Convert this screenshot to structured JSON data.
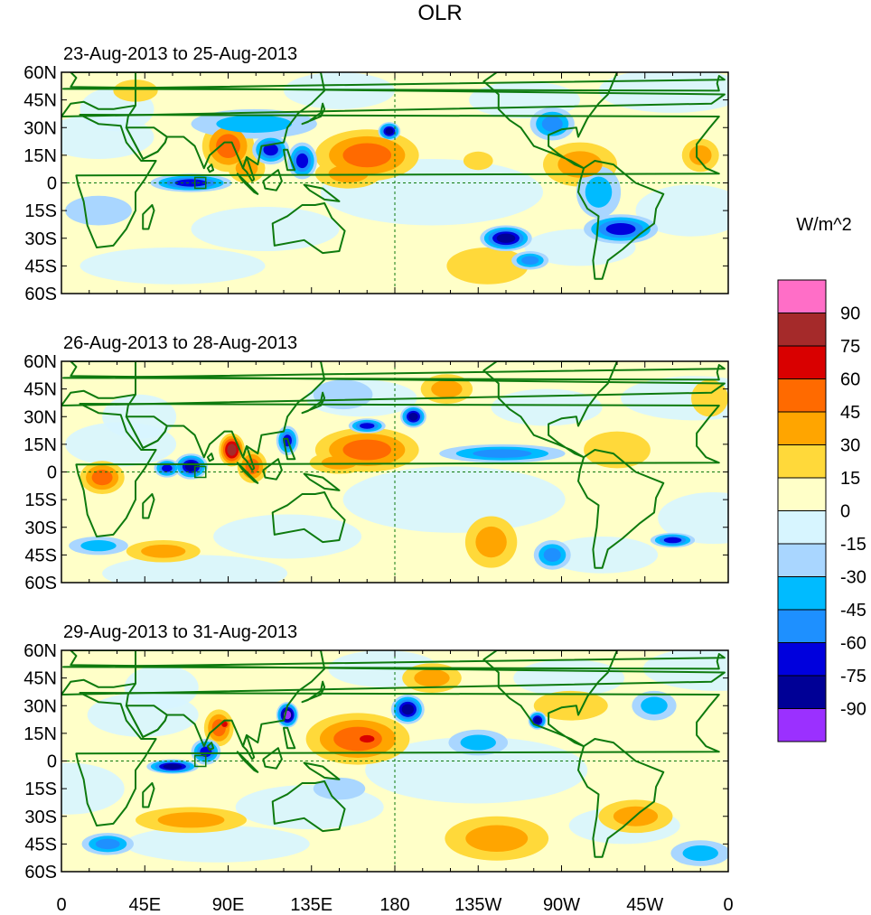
{
  "chart_data": {
    "type": "heatmap",
    "title": "OLR",
    "colorbar": {
      "label": "W/m^2",
      "levels": [
        "90",
        "75",
        "60",
        "45",
        "30",
        "15",
        "0",
        "-15",
        "-30",
        "-45",
        "-60",
        "-75",
        "-90"
      ],
      "colors": [
        "#ff6ec7",
        "#a52a2a",
        "#d90000",
        "#ff6a00",
        "#ffa500",
        "#ffd93a",
        "#ffffc8",
        "#d7f5ff",
        "#a9d6ff",
        "#00bbff",
        "#1e90ff",
        "#0000dd",
        "#000096",
        "#9b30ff"
      ]
    },
    "x_axis": {
      "ticks": [
        "0",
        "45E",
        "90E",
        "135E",
        "180",
        "135W",
        "90W",
        "45W",
        "0"
      ],
      "range": [
        0,
        360
      ]
    },
    "y_axis": {
      "ticks": [
        "60N",
        "45N",
        "30N",
        "15N",
        "0",
        "15S",
        "30S",
        "45S",
        "60S"
      ],
      "range": [
        60,
        -60
      ]
    },
    "panels": [
      {
        "title": "23-Aug-2013 to 25-Aug-2013",
        "anomalies": [
          {
            "lon": 165,
            "lat": 15,
            "w": 28,
            "h": 14,
            "level": 45
          },
          {
            "lon": 155,
            "lat": 5,
            "w": 18,
            "h": 8,
            "level": 30
          },
          {
            "lon": 90,
            "lat": 20,
            "w": 14,
            "h": 14,
            "level": 45
          },
          {
            "lon": 100,
            "lat": 8,
            "w": 10,
            "h": 8,
            "level": 30
          },
          {
            "lon": 113,
            "lat": 18,
            "w": 10,
            "h": 8,
            "level": -60
          },
          {
            "lon": 130,
            "lat": 12,
            "w": 8,
            "h": 10,
            "level": -60
          },
          {
            "lon": 177,
            "lat": 28,
            "w": 6,
            "h": 5,
            "level": -75
          },
          {
            "lon": 70,
            "lat": 0,
            "w": 22,
            "h": 5,
            "level": -60
          },
          {
            "lon": 104,
            "lat": 32,
            "w": 34,
            "h": 8,
            "level": -30
          },
          {
            "lon": 240,
            "lat": -30,
            "w": 14,
            "h": 7,
            "level": -75
          },
          {
            "lon": 253,
            "lat": -42,
            "w": 10,
            "h": 5,
            "level": -45
          },
          {
            "lon": 302,
            "lat": -25,
            "w": 20,
            "h": 8,
            "level": -60
          },
          {
            "lon": 290,
            "lat": -5,
            "w": 12,
            "h": 14,
            "level": -30
          },
          {
            "lon": 265,
            "lat": 32,
            "w": 12,
            "h": 9,
            "level": -45
          },
          {
            "lon": 280,
            "lat": 10,
            "w": 20,
            "h": 12,
            "level": 30
          },
          {
            "lon": 230,
            "lat": -45,
            "w": 22,
            "h": 10,
            "level": 15
          },
          {
            "lon": 345,
            "lat": 15,
            "w": 10,
            "h": 9,
            "level": 30
          },
          {
            "lon": 40,
            "lat": 50,
            "w": 12,
            "h": 6,
            "level": 15
          },
          {
            "lon": 225,
            "lat": 12,
            "w": 8,
            "h": 5,
            "level": 15
          },
          {
            "lon": 20,
            "lat": -15,
            "w": 18,
            "h": 8,
            "level": -15
          }
        ]
      },
      {
        "title": "26-Aug-2013 to 28-Aug-2013",
        "anomalies": [
          {
            "lon": 165,
            "lat": 12,
            "w": 28,
            "h": 12,
            "level": 45
          },
          {
            "lon": 150,
            "lat": 5,
            "w": 16,
            "h": 6,
            "level": 30
          },
          {
            "lon": 92,
            "lat": 12,
            "w": 7,
            "h": 9,
            "level": 75
          },
          {
            "lon": 103,
            "lat": 3,
            "w": 8,
            "h": 9,
            "level": 45
          },
          {
            "lon": 70,
            "lat": 3,
            "w": 9,
            "h": 7,
            "level": -75
          },
          {
            "lon": 57,
            "lat": 2,
            "w": 7,
            "h": 5,
            "level": -60
          },
          {
            "lon": 190,
            "lat": 30,
            "w": 7,
            "h": 6,
            "level": -75
          },
          {
            "lon": 165,
            "lat": 25,
            "w": 10,
            "h": 4,
            "level": -60
          },
          {
            "lon": 122,
            "lat": 17,
            "w": 6,
            "h": 8,
            "level": -60
          },
          {
            "lon": 22,
            "lat": -3,
            "w": 12,
            "h": 9,
            "level": 45
          },
          {
            "lon": 330,
            "lat": -37,
            "w": 12,
            "h": 4,
            "level": -60
          },
          {
            "lon": 238,
            "lat": 10,
            "w": 34,
            "h": 5,
            "level": -45
          },
          {
            "lon": 232,
            "lat": -38,
            "w": 14,
            "h": 14,
            "level": 30
          },
          {
            "lon": 265,
            "lat": -45,
            "w": 10,
            "h": 8,
            "level": -45
          },
          {
            "lon": 55,
            "lat": -43,
            "w": 20,
            "h": 6,
            "level": 30
          },
          {
            "lon": 20,
            "lat": -40,
            "w": 16,
            "h": 5,
            "level": -30
          },
          {
            "lon": 300,
            "lat": 12,
            "w": 18,
            "h": 10,
            "level": 15
          },
          {
            "lon": 350,
            "lat": 40,
            "w": 10,
            "h": 10,
            "level": 15
          },
          {
            "lon": 208,
            "lat": 45,
            "w": 14,
            "h": 8,
            "level": 30
          },
          {
            "lon": 152,
            "lat": 42,
            "w": 16,
            "h": 8,
            "level": -15
          }
        ]
      },
      {
        "title": "29-Aug-2013 to 31-Aug-2013",
        "anomalies": [
          {
            "lon": 160,
            "lat": 12,
            "w": 28,
            "h": 14,
            "level": 45
          },
          {
            "lon": 165,
            "lat": 12,
            "w": 10,
            "h": 5,
            "level": 60
          },
          {
            "lon": 85,
            "lat": 18,
            "w": 8,
            "h": 10,
            "level": 45
          },
          {
            "lon": 88,
            "lat": 20,
            "w": 4,
            "h": 4,
            "level": 60
          },
          {
            "lon": 122,
            "lat": 25,
            "w": 6,
            "h": 7,
            "level": -90
          },
          {
            "lon": 60,
            "lat": -3,
            "w": 14,
            "h": 4,
            "level": -75
          },
          {
            "lon": 78,
            "lat": 5,
            "w": 8,
            "h": 7,
            "level": -60
          },
          {
            "lon": 187,
            "lat": 28,
            "w": 9,
            "h": 8,
            "level": -75
          },
          {
            "lon": 257,
            "lat": 22,
            "w": 5,
            "h": 5,
            "level": -75
          },
          {
            "lon": 235,
            "lat": -42,
            "w": 28,
            "h": 12,
            "level": 30
          },
          {
            "lon": 310,
            "lat": -30,
            "w": 20,
            "h": 9,
            "level": 30
          },
          {
            "lon": 225,
            "lat": 10,
            "w": 16,
            "h": 7,
            "level": -30
          },
          {
            "lon": 275,
            "lat": 30,
            "w": 20,
            "h": 8,
            "level": 15
          },
          {
            "lon": 70,
            "lat": -32,
            "w": 30,
            "h": 7,
            "level": 30
          },
          {
            "lon": 25,
            "lat": -45,
            "w": 14,
            "h": 6,
            "level": -45
          },
          {
            "lon": 320,
            "lat": 30,
            "w": 12,
            "h": 8,
            "level": -30
          },
          {
            "lon": 150,
            "lat": -15,
            "w": 14,
            "h": 6,
            "level": -15
          },
          {
            "lon": 345,
            "lat": -50,
            "w": 16,
            "h": 7,
            "level": -30
          },
          {
            "lon": 200,
            "lat": 45,
            "w": 16,
            "h": 8,
            "level": 30
          }
        ]
      }
    ]
  }
}
